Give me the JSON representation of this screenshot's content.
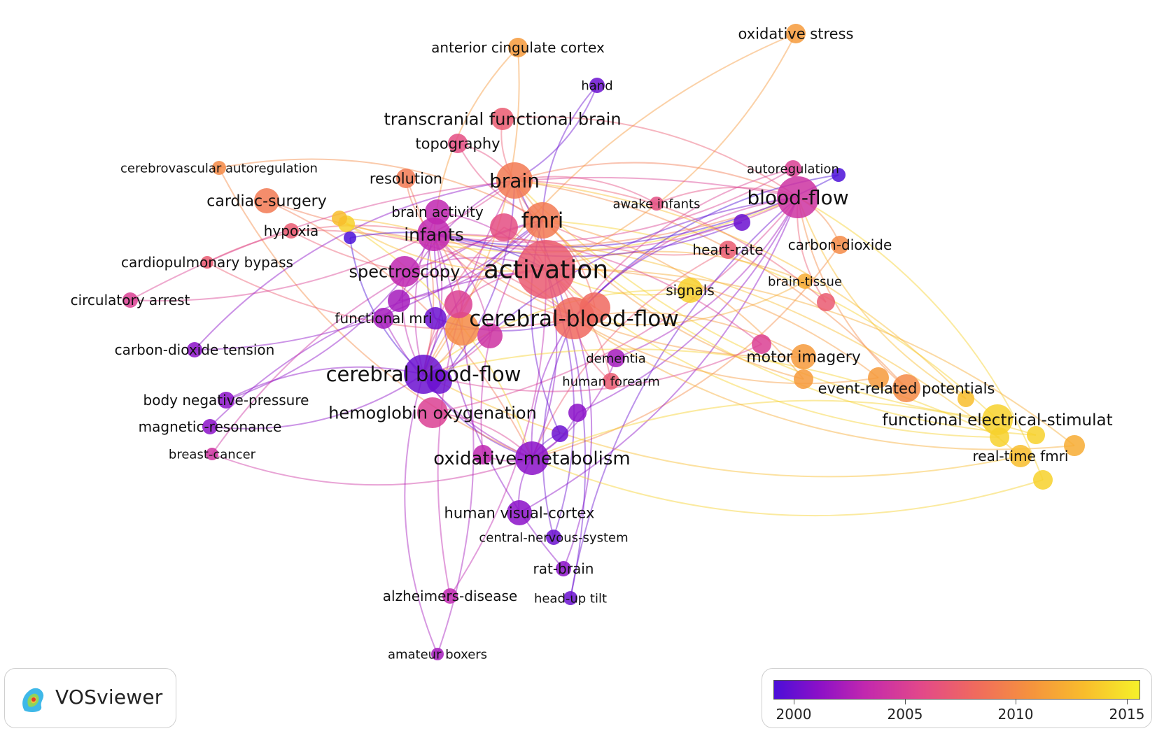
{
  "graph": {
    "nodes": [
      {
        "label": "activation",
        "year": 2008,
        "r": 42
      },
      {
        "label": "cerebral-blood-flow",
        "year": 2009,
        "r": 30
      },
      {
        "label": "brain",
        "year": 2010,
        "r": 26
      },
      {
        "label": "fmri",
        "year": 2010,
        "r": 26
      },
      {
        "label": "infants",
        "year": 2004,
        "r": 24
      },
      {
        "label": "spectroscopy",
        "year": 2004,
        "r": 22
      },
      {
        "label": "cerebral blood-flow",
        "year": 2001,
        "r": 28
      },
      {
        "label": "hemoglobin oxygenation",
        "year": 2006,
        "r": 22
      },
      {
        "label": "oxidative-metabolism",
        "year": 2002,
        "r": 24
      },
      {
        "label": "blood-flow",
        "year": 2005,
        "r": 30
      },
      {
        "label": "transcranial functional brain",
        "year": 2008,
        "r": 16
      },
      {
        "label": "topography",
        "year": 2007,
        "r": 14
      },
      {
        "label": "resolution",
        "year": 2010,
        "r": 14
      },
      {
        "label": "brain activity",
        "year": 2004,
        "r": 18
      },
      {
        "label": "functional mri",
        "year": 2003,
        "r": 15
      },
      {
        "label": "dementia",
        "year": 2003,
        "r": 13
      },
      {
        "label": "human forearm",
        "year": 2008,
        "r": 12
      },
      {
        "label": "motor imagery",
        "year": 2012,
        "r": 18
      },
      {
        "label": "event-related potentials",
        "year": 2011,
        "r": 20
      },
      {
        "label": "functional electrical-stimulat",
        "year": 2015,
        "r": 22
      },
      {
        "label": "real-time fmri",
        "year": 2014,
        "r": 16
      },
      {
        "label": "signals",
        "year": 2015,
        "r": 18
      },
      {
        "label": "heart-rate",
        "year": 2008,
        "r": 13
      },
      {
        "label": "carbon-dioxide",
        "year": 2011,
        "r": 13
      },
      {
        "label": "brain-tissue",
        "year": 2013,
        "r": 11
      },
      {
        "label": "autoregulation",
        "year": 2006,
        "r": 12
      },
      {
        "label": "awake infants",
        "year": 2007,
        "r": 10
      },
      {
        "label": "hand",
        "year": 2001,
        "r": 11
      },
      {
        "label": "anterior cingulate cortex",
        "year": 2012,
        "r": 14
      },
      {
        "label": "oxidative stress",
        "year": 2012,
        "r": 14
      },
      {
        "label": "cerebrovascular autoregulation",
        "year": 2011,
        "r": 10
      },
      {
        "label": "cardiac-surgery",
        "year": 2010,
        "r": 18
      },
      {
        "label": "hypoxia",
        "year": 2008,
        "r": 11
      },
      {
        "label": "cardiopulmonary bypass",
        "year": 2008,
        "r": 9
      },
      {
        "label": "circulatory arrest",
        "year": 2006,
        "r": 11
      },
      {
        "label": "carbon-dioxide tension",
        "year": 2002,
        "r": 11
      },
      {
        "label": "body negative-pressure",
        "year": 2002,
        "r": 12
      },
      {
        "label": "magnetic-resonance",
        "year": 2002,
        "r": 11
      },
      {
        "label": "breast-cancer",
        "year": 2005,
        "r": 9
      },
      {
        "label": "human visual-cortex",
        "year": 2002,
        "r": 18
      },
      {
        "label": "central-nervous-system",
        "year": 2001,
        "r": 11
      },
      {
        "label": "rat-brain",
        "year": 2002,
        "r": 11
      },
      {
        "label": "head-up tilt",
        "year": 2001,
        "r": 10
      },
      {
        "label": "alzheimers-disease",
        "year": 2004,
        "r": 11
      },
      {
        "label": "amateur boxers",
        "year": 2003,
        "r": 9
      },
      {
        "label": "",
        "year": 2015,
        "r": 14
      },
      {
        "label": "",
        "year": 2015,
        "r": 13
      },
      {
        "label": "",
        "year": 2015,
        "r": 14
      },
      {
        "label": "",
        "year": 2013,
        "r": 15
      },
      {
        "label": "",
        "year": 2001,
        "r": 16
      },
      {
        "label": "",
        "year": 2001,
        "r": 18
      },
      {
        "label": "",
        "year": 2003,
        "r": 16
      },
      {
        "label": "",
        "year": 2005,
        "r": 18
      },
      {
        "label": "",
        "year": 2006,
        "r": 20
      },
      {
        "label": "",
        "year": 2001,
        "r": 12
      },
      {
        "label": "",
        "year": 2015,
        "r": 12
      },
      {
        "label": "",
        "year": 2014,
        "r": 11
      },
      {
        "label": "",
        "year": 2000,
        "r": 10
      },
      {
        "label": "",
        "year": 2008,
        "r": 13
      },
      {
        "label": "",
        "year": 2009,
        "r": 22
      },
      {
        "label": "",
        "year": 2011,
        "r": 24
      },
      {
        "label": "",
        "year": 2007,
        "r": 20
      },
      {
        "label": "",
        "year": 2004,
        "r": 14
      },
      {
        "label": "",
        "year": 2002,
        "r": 13
      },
      {
        "label": "",
        "year": 2012,
        "r": 15
      },
      {
        "label": "",
        "year": 2001,
        "r": 12
      },
      {
        "label": "",
        "year": 2014,
        "r": 12
      },
      {
        "label": "",
        "year": 2012,
        "r": 14
      },
      {
        "label": "",
        "year": 2006,
        "r": 14
      },
      {
        "label": "",
        "year": 2000,
        "r": 9
      }
    ]
  },
  "legend": {
    "title": "VOSviewer",
    "ticks": [
      "2000",
      "2005",
      "2010",
      "2015"
    ],
    "range": [
      2000,
      2016.5
    ]
  }
}
